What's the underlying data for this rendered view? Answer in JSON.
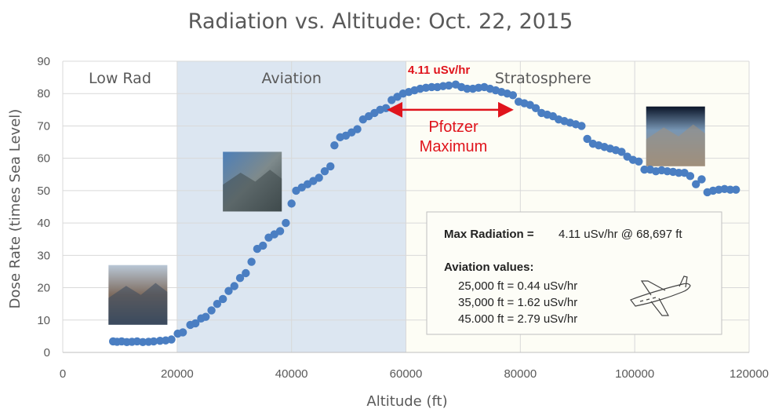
{
  "chart_data": {
    "type": "scatter",
    "title": "Radiation vs. Altitude: Oct. 22, 2015",
    "xlabel": "Altitude (ft)",
    "ylabel": "Dose Rate (times Sea Level)",
    "xlim": [
      0,
      120000
    ],
    "ylim": [
      0,
      90
    ],
    "x_ticks": [
      0,
      20000,
      40000,
      60000,
      80000,
      100000,
      120000
    ],
    "y_ticks": [
      0,
      10,
      20,
      30,
      40,
      50,
      60,
      70,
      80,
      90
    ],
    "grid": true,
    "marker_color": "#4a7ec2",
    "regions": [
      {
        "label": "Low Rad",
        "x_start": 0,
        "x_end": 20000,
        "color": "#ffffff"
      },
      {
        "label": "Aviation",
        "x_start": 20000,
        "x_end": 60000,
        "color": "#dce6f1"
      },
      {
        "label": "Stratosphere",
        "x_start": 60000,
        "x_end": 120000,
        "color": "#fdfdf5"
      }
    ],
    "annotations": {
      "peak_label": "4.11 uSv/hr",
      "pfotzer_line1": "Pfotzer",
      "pfotzer_line2": "Maximum",
      "arrow_x_range": [
        57000,
        78500
      ],
      "arrow_y": 75
    },
    "info_box": {
      "max_label": "Max Radiation = ",
      "max_value": "4.11 uSv/hr @ 68,697 ft",
      "aviation_heading": "Aviation values:",
      "lines": [
        "25,000 ft = 0.44 uSv/hr",
        "35,000 ft = 1.62 uSv/hr",
        "45.000 ft = 2.79 uSv/hr"
      ]
    },
    "points": [
      [
        8800,
        3.4
      ],
      [
        9500,
        3.3
      ],
      [
        10300,
        3.4
      ],
      [
        11200,
        3.2
      ],
      [
        12100,
        3.3
      ],
      [
        13000,
        3.4
      ],
      [
        14000,
        3.2
      ],
      [
        15000,
        3.3
      ],
      [
        15900,
        3.4
      ],
      [
        17000,
        3.6
      ],
      [
        18000,
        3.7
      ],
      [
        19000,
        4.0
      ],
      [
        20100,
        5.8
      ],
      [
        21000,
        6.2
      ],
      [
        22300,
        8.5
      ],
      [
        23200,
        9.0
      ],
      [
        24200,
        10.5
      ],
      [
        25000,
        11.0
      ],
      [
        26000,
        13.0
      ],
      [
        27000,
        15.0
      ],
      [
        28000,
        16.5
      ],
      [
        29000,
        19.0
      ],
      [
        30000,
        20.5
      ],
      [
        31000,
        23.0
      ],
      [
        32000,
        24.5
      ],
      [
        33000,
        28.0
      ],
      [
        34000,
        32.0
      ],
      [
        35000,
        33.0
      ],
      [
        36000,
        35.5
      ],
      [
        37000,
        36.5
      ],
      [
        38000,
        37.5
      ],
      [
        39000,
        40.0
      ],
      [
        40000,
        46.0
      ],
      [
        40800,
        50.0
      ],
      [
        41800,
        51.0
      ],
      [
        42800,
        52.0
      ],
      [
        43800,
        53.0
      ],
      [
        44800,
        54.0
      ],
      [
        45800,
        56.0
      ],
      [
        46800,
        57.5
      ],
      [
        47500,
        64.0
      ],
      [
        48500,
        66.5
      ],
      [
        49500,
        67.0
      ],
      [
        50500,
        68.0
      ],
      [
        51500,
        69.0
      ],
      [
        52500,
        72.0
      ],
      [
        53500,
        73.0
      ],
      [
        54500,
        74.0
      ],
      [
        55500,
        75.0
      ],
      [
        56500,
        75.5
      ],
      [
        57500,
        78.0
      ],
      [
        58500,
        79.0
      ],
      [
        59500,
        80.0
      ],
      [
        60500,
        80.5
      ],
      [
        61500,
        81.0
      ],
      [
        62500,
        81.5
      ],
      [
        63500,
        81.8
      ],
      [
        64500,
        82.0
      ],
      [
        65500,
        82.0
      ],
      [
        66500,
        82.3
      ],
      [
        67500,
        82.5
      ],
      [
        68700,
        82.8
      ],
      [
        69700,
        82.0
      ],
      [
        70700,
        81.5
      ],
      [
        71700,
        81.5
      ],
      [
        72700,
        81.8
      ],
      [
        73700,
        82.0
      ],
      [
        74700,
        81.5
      ],
      [
        75700,
        81.0
      ],
      [
        76700,
        80.5
      ],
      [
        77700,
        80.0
      ],
      [
        78700,
        79.5
      ],
      [
        79700,
        77.5
      ],
      [
        80700,
        77.0
      ],
      [
        81700,
        76.5
      ],
      [
        82700,
        75.5
      ],
      [
        83700,
        74.0
      ],
      [
        84700,
        73.5
      ],
      [
        85700,
        73.0
      ],
      [
        86700,
        72.0
      ],
      [
        87700,
        71.5
      ],
      [
        88700,
        71.0
      ],
      [
        89700,
        70.5
      ],
      [
        90700,
        70.0
      ],
      [
        91700,
        66.0
      ],
      [
        92700,
        64.5
      ],
      [
        93700,
        64.0
      ],
      [
        94700,
        63.5
      ],
      [
        95700,
        63.0
      ],
      [
        96700,
        62.5
      ],
      [
        97700,
        62.0
      ],
      [
        98700,
        60.5
      ],
      [
        99700,
        59.5
      ],
      [
        100700,
        59.0
      ],
      [
        101700,
        56.5
      ],
      [
        102700,
        56.5
      ],
      [
        103700,
        56.0
      ],
      [
        104700,
        56.3
      ],
      [
        105700,
        56.0
      ],
      [
        106700,
        55.8
      ],
      [
        107700,
        55.5
      ],
      [
        108700,
        55.5
      ],
      [
        109700,
        54.5
      ],
      [
        110700,
        52.0
      ],
      [
        111700,
        53.5
      ],
      [
        112700,
        49.5
      ],
      [
        113700,
        50.0
      ],
      [
        114700,
        50.3
      ],
      [
        115700,
        50.5
      ],
      [
        116700,
        50.3
      ],
      [
        117700,
        50.3
      ]
    ]
  },
  "photos": [
    {
      "name": "ground-crew-photo",
      "x": 8000,
      "y": 27,
      "colors": [
        "#b9c7d6",
        "#7d6b5e",
        "#3b4a5e"
      ]
    },
    {
      "name": "aviation-altitude-photo",
      "x": 28000,
      "y": 62,
      "colors": [
        "#4d7fb8",
        "#7e8a8c",
        "#3f4a4c"
      ]
    },
    {
      "name": "stratosphere-photo",
      "x": 102000,
      "y": 76,
      "colors": [
        "#0b1528",
        "#7896b4",
        "#a08f7c"
      ]
    }
  ]
}
